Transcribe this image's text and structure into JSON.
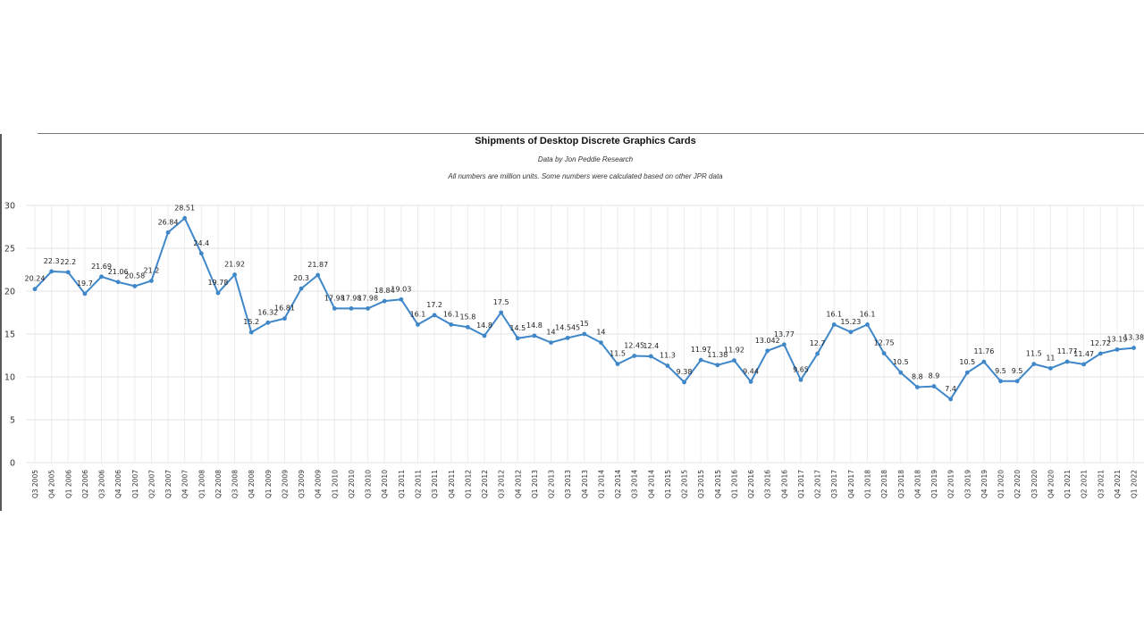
{
  "chart_data": {
    "type": "line",
    "title": "Shipments of Desktop Discrete Graphics Cards",
    "subtitle": "Data by Jon Peddie Research",
    "note": "All numbers are million units. Some numbers were calculated based on other JPR data",
    "xlabel": "",
    "ylabel": "",
    "ylim": [
      0,
      30
    ],
    "yticks": [
      "0",
      "5",
      "10",
      "15",
      "20",
      "25",
      "30"
    ],
    "grid": true,
    "legend": "none",
    "color": "#3f87c9",
    "categories": [
      "Q3 2005",
      "Q4 2005",
      "Q1 2006",
      "Q2 2006",
      "Q3 2006",
      "Q4 2006",
      "Q1 2007",
      "Q2 2007",
      "Q3 2007",
      "Q4 2007",
      "Q1 2008",
      "Q2 2008",
      "Q3 2008",
      "Q4 2008",
      "Q1 2009",
      "Q2 2009",
      "Q3 2009",
      "Q4 2009",
      "Q1 2010",
      "Q2 2010",
      "Q3 2010",
      "Q4 2010",
      "Q1 2011",
      "Q2 2011",
      "Q3 2011",
      "Q4 2011",
      "Q1 2012",
      "Q2 2012",
      "Q3 2012",
      "Q4 2012",
      "Q1 2013",
      "Q2 2013",
      "Q3 2013",
      "Q4 2013",
      "Q1 2014",
      "Q2 2014",
      "Q3 2014",
      "Q4 2014",
      "Q1 2015",
      "Q2 2015",
      "Q3 2015",
      "Q4 2015",
      "Q1 2016",
      "Q2 2016",
      "Q3 2016",
      "Q4 2016",
      "Q1 2017",
      "Q2 2017",
      "Q3 2017",
      "Q4 2017",
      "Q1 2018",
      "Q2 2018",
      "Q3 2018",
      "Q4 2018",
      "Q1 2019",
      "Q2 2019",
      "Q3 2019",
      "Q4 2019",
      "Q1 2020",
      "Q2 2020",
      "Q3 2020",
      "Q4 2020",
      "Q1 2021",
      "Q2 2021",
      "Q3 2021",
      "Q4 2021",
      "Q1 2022"
    ],
    "values": [
      20.24,
      22.3,
      22.2,
      19.7,
      21.69,
      21.06,
      20.58,
      21.2,
      26.84,
      28.51,
      24.4,
      19.78,
      21.92,
      15.2,
      16.32,
      16.81,
      20.3,
      21.87,
      17.98,
      17.98,
      17.98,
      18.84,
      19.03,
      16.1,
      17.2,
      16.1,
      15.8,
      14.8,
      17.5,
      14.5,
      14.8,
      14,
      14.545,
      15,
      14,
      11.5,
      12.45,
      12.4,
      11.3,
      9.38,
      11.97,
      11.38,
      11.92,
      9.44,
      13.042,
      13.77,
      9.65,
      12.7,
      16.1,
      15.23,
      16.1,
      12.75,
      10.5,
      8.8,
      8.9,
      7.4,
      10.5,
      11.76,
      9.5,
      9.5,
      11.5,
      11,
      11.77,
      11.47,
      12.72,
      13.19,
      13.38
    ],
    "data_labels": [
      "20.24",
      "22.3",
      "22.2",
      "19.7",
      "21.69",
      "21.06",
      "20.58",
      "21.2",
      "26.84",
      "28.51",
      "24.4",
      "19.78",
      "21.92",
      "15.2",
      "16.32",
      "16.81",
      "20.3",
      "21.87",
      "17.98",
      "17.98",
      "17.98",
      "18.84",
      "19.03",
      "16.1",
      "17.2",
      "16.1",
      "15.8",
      "14.8",
      "17.5",
      "14.5",
      "14.8",
      "14",
      "14.545",
      "15",
      "14",
      "11.5",
      "12.45",
      "12.4",
      "11.3",
      "9.38",
      "11.97",
      "11.38",
      "11.92",
      "9.44",
      "13.042",
      "13.77",
      "9.65",
      "12.7",
      "16.1",
      "15.23",
      "16.1",
      "12.75",
      "10.5",
      "8.8",
      "8.9",
      "7.4",
      "10.5",
      "11.76",
      "9.5",
      "9.5",
      "11.5",
      "11",
      "11.77",
      "11.47",
      "12.72",
      "13.19",
      "13.38"
    ]
  }
}
